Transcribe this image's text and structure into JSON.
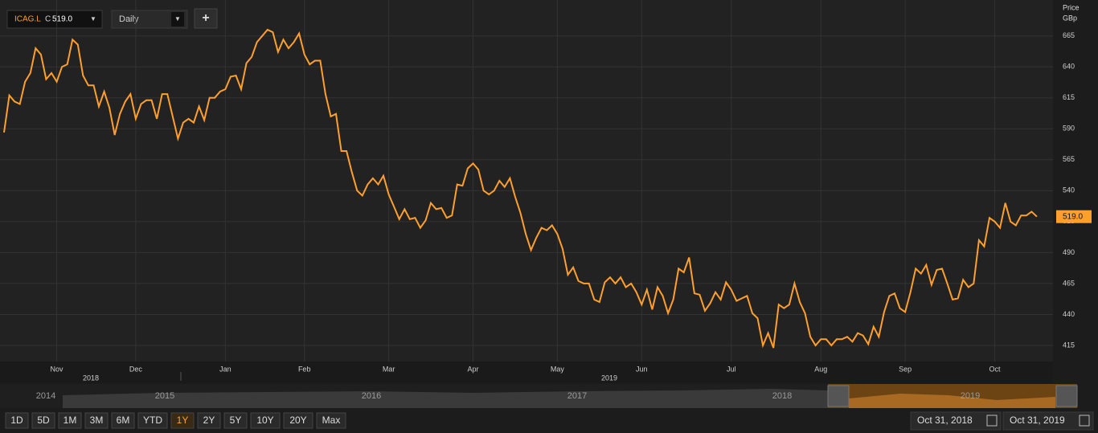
{
  "chart_data": {
    "type": "line",
    "ylabel": "Price",
    "yunit": "GBp",
    "last_price_label": "519.0",
    "close_prefix": "C",
    "year_labels": [
      "2018",
      "2019"
    ],
    "ylim": [
      402,
      694
    ],
    "yticks": [
      415,
      440,
      465,
      490,
      515,
      540,
      565,
      590,
      615,
      640,
      665
    ],
    "grid": true,
    "categories": [
      null,
      null,
      null,
      null,
      null,
      null,
      null,
      null,
      null,
      null,
      "Nov",
      null,
      null,
      null,
      null,
      null,
      null,
      null,
      null,
      null,
      null,
      null,
      null,
      null,
      null,
      "Dec",
      null,
      null,
      null,
      null,
      null,
      null,
      null,
      null,
      null,
      null,
      null,
      null,
      null,
      null,
      null,
      null,
      "Jan",
      null,
      null,
      null,
      null,
      null,
      null,
      null,
      null,
      null,
      null,
      null,
      null,
      null,
      null,
      "Feb",
      null,
      null,
      null,
      null,
      null,
      null,
      null,
      null,
      null,
      null,
      null,
      null,
      null,
      null,
      null,
      "Mar",
      null,
      null,
      null,
      null,
      null,
      null,
      null,
      null,
      null,
      null,
      null,
      null,
      null,
      null,
      null,
      "Apr",
      null,
      null,
      null,
      null,
      null,
      null,
      null,
      null,
      null,
      null,
      null,
      null,
      null,
      null,
      null,
      "May",
      null,
      null,
      null,
      null,
      null,
      null,
      null,
      null,
      null,
      null,
      null,
      null,
      null,
      null,
      null,
      "Jun",
      null,
      null,
      null,
      null,
      null,
      null,
      null,
      null,
      null,
      null,
      null,
      null,
      null,
      null,
      null,
      null,
      "Jul",
      null,
      null,
      null,
      null,
      null,
      null,
      null,
      null,
      null,
      null,
      null,
      null,
      null,
      null,
      null,
      null,
      "Aug",
      null,
      null,
      null,
      null,
      null,
      null,
      null,
      null,
      null,
      null,
      null,
      null,
      null,
      null,
      null,
      "Sep",
      null,
      null,
      null,
      null,
      null,
      null,
      null,
      null,
      null,
      null,
      null,
      null,
      null,
      null,
      null,
      null,
      "Oct",
      null,
      null,
      null,
      null,
      null,
      null,
      null,
      null
    ],
    "series": [
      {
        "name": "ICAG.L",
        "color": "#ff9f2e",
        "values": [
          587,
          617,
          612,
          610,
          628,
          635,
          655,
          650,
          630,
          635,
          628,
          640,
          642,
          662,
          658,
          633,
          625,
          625,
          608,
          620,
          607,
          585,
          602,
          612,
          618,
          598,
          610,
          613,
          613,
          598,
          618,
          618,
          600,
          582,
          595,
          598,
          595,
          608,
          597,
          615,
          615,
          620,
          622,
          632,
          633,
          622,
          643,
          648,
          660,
          665,
          670,
          668,
          652,
          662,
          655,
          660,
          667,
          650,
          642,
          645,
          645,
          618,
          600,
          602,
          572,
          572,
          555,
          540,
          536,
          545,
          550,
          545,
          552,
          537,
          527,
          517,
          525,
          517,
          518,
          510,
          516,
          530,
          525,
          526,
          518,
          520,
          545,
          544,
          558,
          562,
          557,
          540,
          537,
          540,
          548,
          543,
          550,
          535,
          522,
          505,
          492,
          502,
          510,
          508,
          512,
          505,
          493,
          472,
          478,
          467,
          465,
          465,
          452,
          450,
          466,
          470,
          465,
          470,
          462,
          465,
          458,
          448,
          460,
          444,
          462,
          455,
          441,
          452,
          477,
          474,
          486,
          457,
          456,
          443,
          449,
          458,
          452,
          466,
          460,
          451,
          453,
          455,
          441,
          437,
          415,
          425,
          413,
          448,
          445,
          448,
          465,
          450,
          441,
          422,
          415,
          420,
          420,
          415,
          420,
          420,
          422,
          418,
          425,
          423,
          416,
          430,
          422,
          442,
          455,
          457,
          445,
          442,
          458,
          477,
          473,
          480,
          464,
          476,
          477,
          465,
          452,
          453,
          468,
          462,
          465,
          500,
          495,
          518,
          515,
          510,
          530,
          515,
          512,
          520,
          520,
          523,
          519
        ]
      }
    ]
  },
  "toolbar": {
    "interval": "Daily",
    "add": "+"
  },
  "navigator": {
    "years": [
      "2014",
      "2015",
      "2016",
      "2017",
      "2018",
      "2019"
    ]
  },
  "ranges": {
    "buttons": [
      "1D",
      "5D",
      "1M",
      "3M",
      "6M",
      "YTD",
      "1Y",
      "2Y",
      "5Y",
      "10Y",
      "20Y",
      "Max"
    ],
    "active": 6
  },
  "dates": {
    "from": "Oct 31, 2018",
    "to": "Oct 31, 2019"
  }
}
